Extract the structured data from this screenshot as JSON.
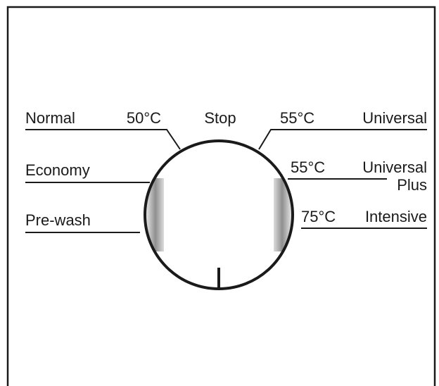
{
  "dial": {
    "top_label": "Stop",
    "left": [
      {
        "name": "Normal",
        "temp": "50°C"
      },
      {
        "name": "Economy"
      },
      {
        "name": "Pre-wash"
      }
    ],
    "right": [
      {
        "name": "Universal",
        "temp": "55°C"
      },
      {
        "name": "Universal",
        "name2": "Plus",
        "temp": "55°C"
      },
      {
        "name": "Intensive",
        "temp": "75°C"
      }
    ]
  },
  "colors": {
    "line": "#1a1a1a",
    "shade_dark": "#8a8a8a",
    "shade_light": "#eeeeee"
  }
}
